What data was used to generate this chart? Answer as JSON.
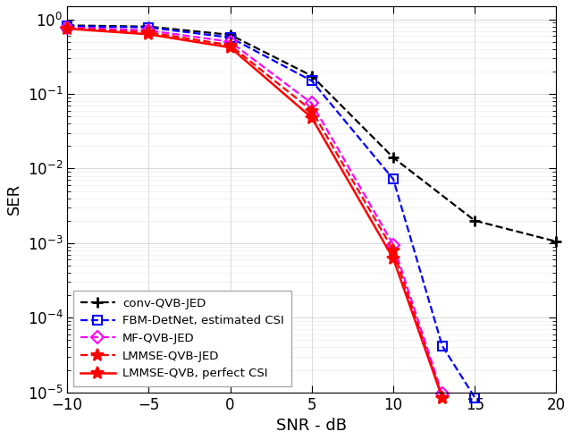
{
  "title": "",
  "xlabel": "SNR - dB",
  "ylabel": "SER",
  "xlim": [
    -10,
    20
  ],
  "ylim": [
    1e-05,
    1.5
  ],
  "snr_ticks": [
    -10,
    -5,
    0,
    5,
    10,
    15,
    20
  ],
  "series": [
    {
      "label": "conv-QVB-JED",
      "color": "#000000",
      "linestyle": "dashed",
      "marker": "+",
      "linewidth": 1.6,
      "markersize": 9,
      "markeredgewidth": 2.0,
      "x": [
        -10,
        -5,
        0,
        5,
        10,
        15,
        20
      ],
      "y": [
        0.83,
        0.8,
        0.62,
        0.175,
        0.014,
        0.002,
        0.00105
      ]
    },
    {
      "label": "FBM-DetNet, estimated CSI",
      "color": "#0000FF",
      "linestyle": "dashed",
      "marker": "s",
      "linewidth": 1.6,
      "markersize": 7,
      "markeredgewidth": 1.5,
      "x": [
        -10,
        -5,
        0,
        5,
        10,
        13,
        15
      ],
      "y": [
        0.81,
        0.78,
        0.57,
        0.15,
        0.0072,
        4.2e-05,
        8.5e-06
      ]
    },
    {
      "label": "MF-QVB-JED",
      "color": "#FF00FF",
      "linestyle": "dashed",
      "marker": "D",
      "linewidth": 1.6,
      "markersize": 7,
      "markeredgewidth": 1.5,
      "x": [
        -10,
        -5,
        0,
        5,
        10,
        13
      ],
      "y": [
        0.78,
        0.71,
        0.5,
        0.075,
        0.00095,
        9.5e-06
      ]
    },
    {
      "label": "LMMSE-QVB-JED",
      "color": "#FF0000",
      "linestyle": "dashed",
      "marker": "*",
      "linewidth": 1.6,
      "markersize": 10,
      "markeredgewidth": 1.5,
      "x": [
        -10,
        -5,
        0,
        5,
        10,
        13
      ],
      "y": [
        0.76,
        0.67,
        0.45,
        0.06,
        0.0008,
        8.5e-06
      ]
    },
    {
      "label": "LMMSE-QVB, perfect CSI",
      "color": "#FF0000",
      "linestyle": "solid",
      "marker": "*",
      "linewidth": 1.8,
      "markersize": 10,
      "markeredgewidth": 1.5,
      "x": [
        -10,
        -5,
        0,
        5,
        10,
        13
      ],
      "y": [
        0.75,
        0.63,
        0.42,
        0.048,
        0.00062,
        8.5e-06
      ]
    }
  ],
  "legend_loc": "lower left",
  "legend_fontsize": 9.5,
  "tick_fontsize": 12,
  "label_fontsize": 13,
  "background_color": "#ffffff"
}
